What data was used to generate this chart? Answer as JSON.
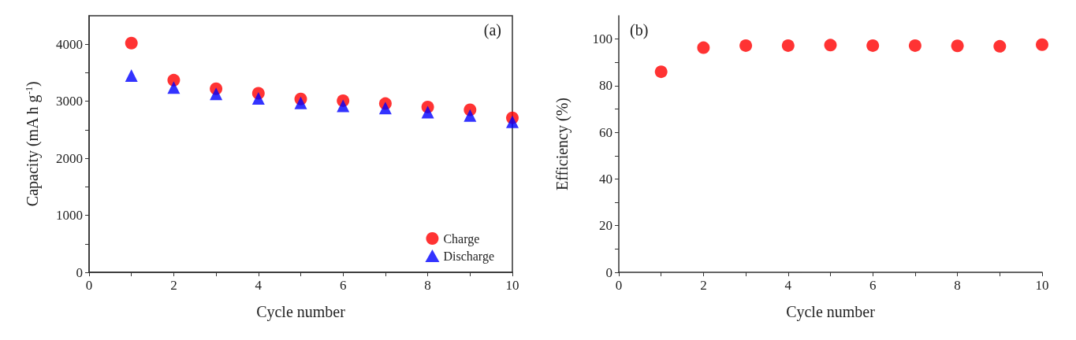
{
  "chart_data": [
    {
      "type": "scatter",
      "xlabel": "Cycle number",
      "ylabel": "Capacity (mA h g$^{-1}$)",
      "annotations": [
        "(a)"
      ],
      "x": [
        1,
        2,
        3,
        4,
        5,
        6,
        7,
        8,
        9,
        10
      ],
      "series": [
        {
          "name": "Charge",
          "color": "#ff0000",
          "marker": "circle",
          "values": [
            4020,
            3370,
            3220,
            3140,
            3040,
            3010,
            2960,
            2900,
            2850,
            2710
          ]
        },
        {
          "name": "Discharge",
          "color": "#0000ff",
          "marker": "triangle",
          "values": [
            3450,
            3240,
            3130,
            3050,
            2970,
            2920,
            2880,
            2810,
            2750,
            2640
          ]
        }
      ],
      "xlim": [
        0,
        10
      ],
      "xticks": [
        0,
        {
          "value": 1,
          "label": null
        },
        2,
        {
          "value": 3,
          "label": null
        },
        4,
        {
          "value": 5,
          "label": null
        },
        6,
        {
          "value": 7,
          "label": null
        },
        8,
        {
          "value": 9,
          "label": null
        },
        10
      ],
      "ylim": [
        0,
        4500
      ],
      "yticks": [
        0,
        {
          "value": 500,
          "label": null
        },
        1000,
        {
          "value": 1500,
          "label": null
        },
        2000,
        {
          "value": 2500,
          "label": null
        },
        3000,
        {
          "value": 3500,
          "label": null
        },
        4000
      ],
      "legend": "bottom right",
      "grid": false
    },
    {
      "type": "scatter",
      "xlabel": "Cycle number",
      "ylabel": "Efficiency (%)",
      "annotations": [
        "(b)"
      ],
      "x": [
        1,
        2,
        3,
        4,
        5,
        6,
        7,
        8,
        9,
        10
      ],
      "series": [
        {
          "color": "#ff0000",
          "marker": "circle",
          "values": [
            86.0,
            96.3,
            97.2,
            97.2,
            97.4,
            97.2,
            97.2,
            97.1,
            96.9,
            97.6
          ]
        }
      ],
      "xlim": [
        0,
        10
      ],
      "xticks": [
        0,
        {
          "value": 1,
          "label": null
        },
        2,
        {
          "value": 3,
          "label": null
        },
        4,
        {
          "value": 5,
          "label": null
        },
        6,
        {
          "value": 7,
          "label": null
        },
        8,
        {
          "value": 9,
          "label": null
        },
        10
      ],
      "ylim": [
        0,
        110
      ],
      "yticks": [
        0,
        {
          "value": 10,
          "label": null
        },
        20,
        {
          "value": 30,
          "label": null
        },
        40,
        {
          "value": 50,
          "label": null
        },
        60,
        {
          "value": 70,
          "label": null
        },
        80,
        {
          "value": 90,
          "label": null
        },
        100
      ],
      "legend": false,
      "grid": false
    }
  ]
}
